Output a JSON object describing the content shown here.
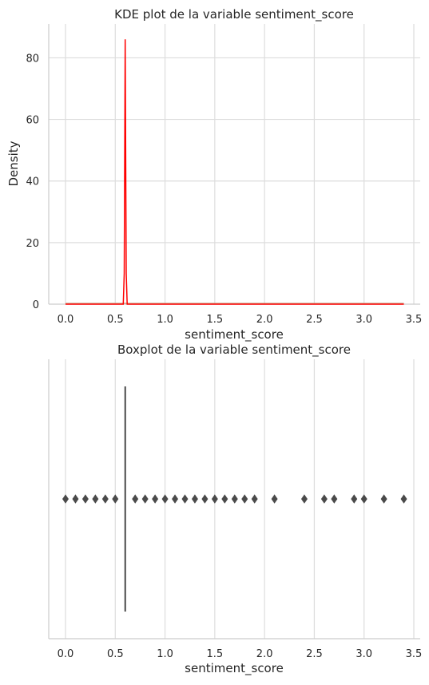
{
  "chart_data": [
    {
      "type": "area",
      "title": "KDE plot de la variable sentiment_score",
      "xlabel": "sentiment_score",
      "ylabel": "Density",
      "xlim": [
        -0.17,
        3.45
      ],
      "ylim": [
        0,
        91
      ],
      "xticks": [
        0.0,
        0.5,
        1.0,
        1.5,
        2.0,
        2.5,
        3.0,
        3.5
      ],
      "xtick_labels": [
        "0.0",
        "0.5",
        "1.0",
        "1.5",
        "2.0",
        "2.5",
        "3.0",
        "3.5"
      ],
      "yticks": [
        0,
        20,
        40,
        60,
        80
      ],
      "ytick_labels": [
        "0",
        "20",
        "40",
        "60",
        "80"
      ],
      "grid": true,
      "line_color": "#ff0000",
      "series": [
        {
          "x": [
            0.0,
            0.58,
            0.59,
            0.6,
            0.61,
            0.62,
            0.63,
            1.0,
            2.0,
            3.0,
            3.4
          ],
          "values": [
            0,
            0,
            10,
            86,
            10,
            0,
            0,
            0,
            0,
            0,
            0
          ]
        }
      ],
      "baseline_color": "#c9a98f"
    },
    {
      "type": "box",
      "title": "Boxplot de la variable sentiment_score",
      "xlabel": "sentiment_score",
      "xlim": [
        -0.17,
        3.45
      ],
      "xticks": [
        0.0,
        0.5,
        1.0,
        1.5,
        2.0,
        2.5,
        3.0,
        3.5
      ],
      "xtick_labels": [
        "0.0",
        "0.5",
        "1.0",
        "1.5",
        "2.0",
        "2.5",
        "3.0",
        "3.5"
      ],
      "grid": true,
      "box": {
        "q1": 0.6,
        "median": 0.6,
        "q3": 0.6,
        "whisker_low": 0.6,
        "whisker_high": 0.6
      },
      "outliers": [
        0.0,
        0.1,
        0.2,
        0.3,
        0.4,
        0.5,
        0.7,
        0.8,
        0.9,
        1.0,
        1.1,
        1.2,
        1.3,
        1.4,
        1.5,
        1.6,
        1.7,
        1.8,
        1.9,
        2.1,
        2.4,
        2.6,
        2.7,
        2.9,
        3.0,
        3.2,
        3.4
      ],
      "color": "#4a4a4a"
    }
  ]
}
